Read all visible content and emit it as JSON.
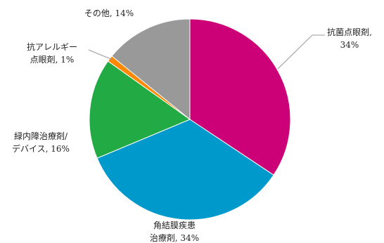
{
  "chart_data": {
    "type": "pie",
    "title": "",
    "start_angle_deg": 0,
    "direction": "clockwise",
    "legend": "none",
    "slices": [
      {
        "name": "抗菌点眼剤",
        "value": 34,
        "pct_label": "34%",
        "color": "#cc0077",
        "label_lines": [
          "抗菌点眼剤,",
          "34%"
        ]
      },
      {
        "name": "角結膜疾患治療剤",
        "value": 34,
        "pct_label": "34%",
        "color": "#0099cc",
        "label_lines": [
          "角結膜疾患",
          "治療剤, 34%"
        ]
      },
      {
        "name": "緑内障治療剤/デバイス",
        "value": 16,
        "pct_label": "16%",
        "color": "#22aa44",
        "label_lines": [
          "緑内障治療剤/",
          "デバイス, 16%"
        ]
      },
      {
        "name": "抗アレルギー点眼剤",
        "value": 1,
        "pct_label": "1%",
        "color": "#ff8800",
        "label_lines": [
          "抗アレルギー",
          "点眼剤, 1%"
        ]
      },
      {
        "name": "その他",
        "value": 14,
        "pct_label": "14%",
        "color": "#999999",
        "label_lines": [
          "その他, 14%"
        ]
      }
    ]
  }
}
